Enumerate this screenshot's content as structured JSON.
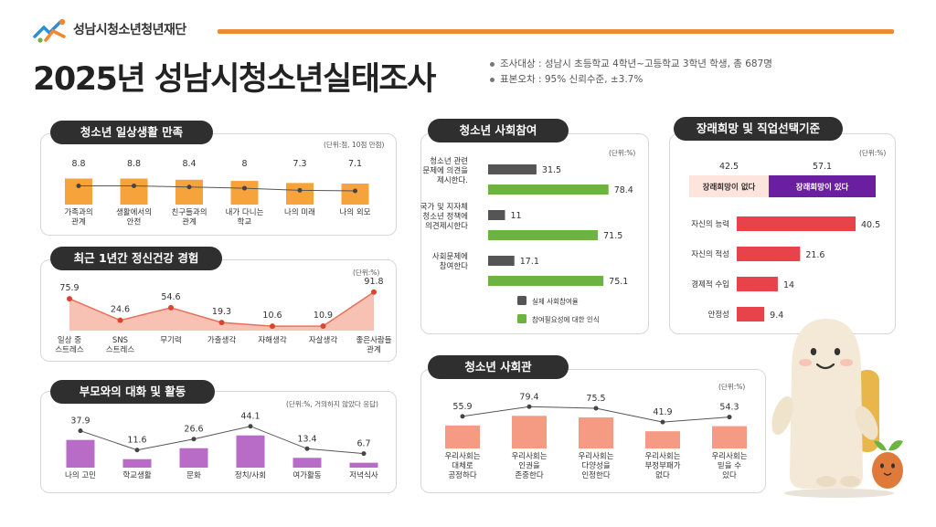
{
  "header": {
    "org_name": "성남시청소년청년재단",
    "title": "2025년 성남시청소년실태조사",
    "info": [
      "조사대상 : 성남시 초등학교 4학년~고등학교 3학년 학생, 총 687명",
      "표본오차 : 95% 신뢰수준, ±3.7%"
    ]
  },
  "colors": {
    "orange": "#f5a33a",
    "salmon": "#f59b84",
    "purple": "#b86bc7",
    "green": "#6db33f",
    "gray": "#555555",
    "red": "#e8424a",
    "deep_purple": "#6a1fa0",
    "pink": "#fde4dd",
    "accent": "#f08a32"
  },
  "chart_data": [
    {
      "id": "daily_life",
      "type": "bar",
      "title": "청소년 일상생활 만족",
      "unit": "(단위:점, 10점 만점)",
      "categories": [
        "가족과의\n관계",
        "생활에서의\n안전",
        "친구들과의\n관계",
        "내가 다니는\n학교",
        "나의 미래",
        "나의 외모"
      ],
      "values": [
        8.8,
        8.8,
        8.4,
        8,
        7.3,
        7.1
      ],
      "ylim": [
        0,
        10
      ]
    },
    {
      "id": "mental_health",
      "type": "area",
      "title": "최근 1년간 정신건강 경험",
      "unit": "(단위:%)",
      "categories": [
        "일상 중\n스트레스",
        "SNS\n스트레스",
        "무기력",
        "가출생각",
        "자해생각",
        "자살생각",
        "좋은사람들\n관계"
      ],
      "values": [
        75.9,
        24.6,
        54.6,
        19.3,
        10.6,
        10.9,
        91.8
      ],
      "ylim": [
        0,
        100
      ]
    },
    {
      "id": "parents",
      "type": "bar",
      "title": "부모와의 대화 및 활동",
      "unit": "(단위:%, 거의하지 않았다 응답)",
      "categories": [
        "나의 고민",
        "학교생활",
        "문화",
        "정치/사회",
        "여가활동",
        "저녁식사"
      ],
      "values": [
        37.9,
        11.6,
        26.6,
        44.1,
        13.4,
        6.7
      ],
      "ylim": [
        0,
        50
      ]
    },
    {
      "id": "participation",
      "type": "bar",
      "orientation": "horizontal",
      "title": "청소년 사회참여",
      "unit": "(단위:%)",
      "categories": [
        "청소년 관련\n문제에 의견을\n제시한다.",
        "국가 및 지자체\n청소년 정책에\n의견제시한다",
        "사회문제에\n참여한다"
      ],
      "series": [
        {
          "name": "실제 사회참여율",
          "values": [
            31.5,
            11,
            17.1
          ]
        },
        {
          "name": "참여필요성에 대한 인식",
          "values": [
            78.4,
            71.5,
            75.1
          ]
        }
      ],
      "xlim": [
        0,
        100
      ]
    },
    {
      "id": "future",
      "type": "bar",
      "orientation": "horizontal",
      "title": "장래희망 및 직업선택기준",
      "unit": "(단위:%)",
      "split": {
        "labels": [
          "장래희망이 없다",
          "장래희망이 있다"
        ],
        "values": [
          42.5,
          57.1
        ]
      },
      "categories": [
        "자신의 능력",
        "자신의 적성",
        "경제적 수입",
        "안정성"
      ],
      "values": [
        40.5,
        21.6,
        14,
        9.4
      ],
      "xlim": [
        0,
        50
      ]
    },
    {
      "id": "social_view",
      "type": "bar",
      "title": "청소년 사회관",
      "unit": "(단위:%)",
      "categories": [
        "우리사회는\n대체로\n공정하다",
        "우리사회는\n인권을\n존중한다",
        "우리사회는\n다양성을\n인정한다",
        "우리사회는\n부정부패가\n없다",
        "우리사회는\n믿을 수\n있다"
      ],
      "values": [
        55.9,
        79.4,
        75.5,
        41.9,
        54.3
      ],
      "ylim": [
        0,
        100
      ]
    }
  ]
}
